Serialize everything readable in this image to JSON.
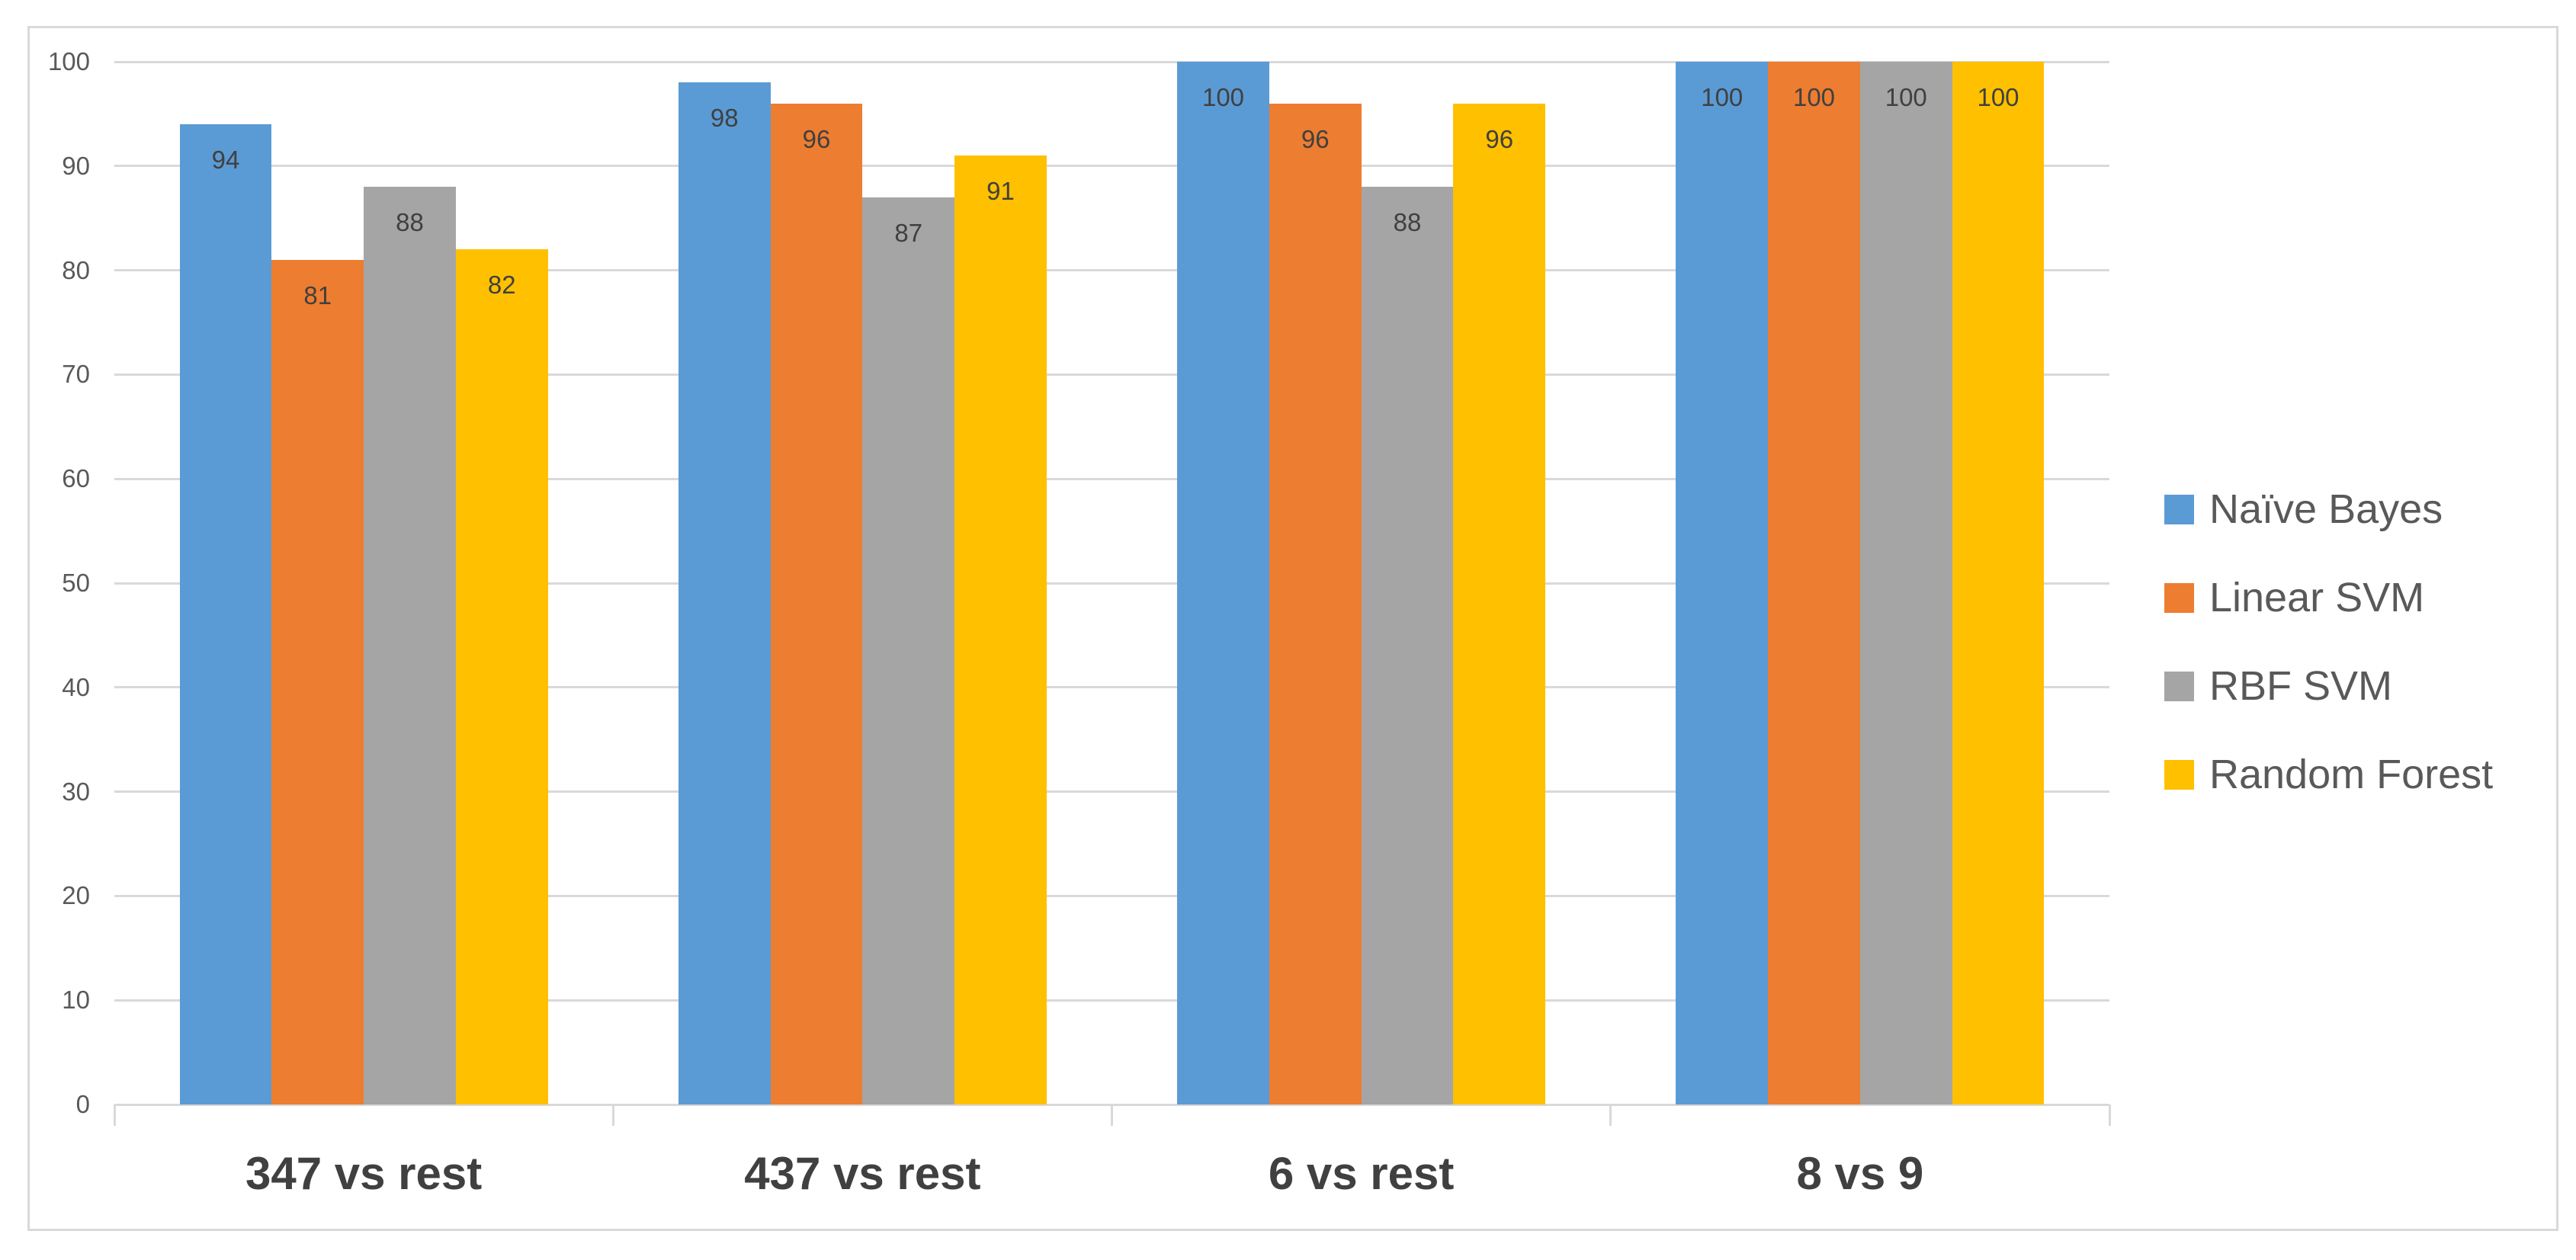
{
  "chart_data": {
    "type": "bar",
    "title": "",
    "categories": [
      "347 vs rest",
      "437 vs rest",
      "6 vs rest",
      "8 vs 9"
    ],
    "series": [
      {
        "name": "Naïve Bayes",
        "color": "#5B9BD5",
        "values": [
          94,
          98,
          100,
          100
        ]
      },
      {
        "name": "Linear SVM",
        "color": "#ED7D31",
        "values": [
          81,
          96,
          96,
          100
        ]
      },
      {
        "name": "RBF SVM",
        "color": "#A5A5A5",
        "values": [
          88,
          87,
          88,
          100
        ]
      },
      {
        "name": "Random Forest",
        "color": "#FFC000",
        "values": [
          82,
          91,
          96,
          100
        ]
      }
    ],
    "y_axis": {
      "min": 0,
      "max": 100,
      "step": 10,
      "tick_labels": [
        "0",
        "10",
        "20",
        "30",
        "40",
        "50",
        "60",
        "70",
        "80",
        "90",
        "100"
      ]
    },
    "x_axis": {
      "tick_marks_between_categories": true
    },
    "data_labels_visible": true,
    "data_labels_position": "inside-end",
    "legend": {
      "position": "right",
      "entries": [
        "Naïve Bayes",
        "Linear SVM",
        "RBF SVM",
        "Random Forest"
      ]
    },
    "grid": true,
    "colors": {
      "background": "#FFFFFF",
      "chart_border": "#D9D9D9",
      "gridline": "#D9D9D9",
      "axis_line": "#D9D9D9",
      "axis_tick": "#D9D9D9",
      "y_tick_label": "#595959",
      "data_label": "#404040",
      "category_label": "#404040",
      "legend_label": "#595959"
    }
  }
}
